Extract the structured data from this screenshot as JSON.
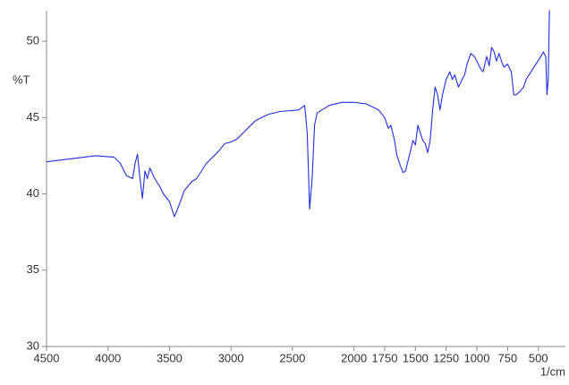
{
  "chart_data": {
    "type": "line",
    "y_label": "%T",
    "x_label": "1/cm",
    "color": "#1f2fe0",
    "x": [
      4500,
      4300,
      4100,
      3950,
      3900,
      3850,
      3800,
      3780,
      3760,
      3740,
      3720,
      3700,
      3680,
      3660,
      3620,
      3580,
      3550,
      3500,
      3460,
      3420,
      3380,
      3320,
      3280,
      3200,
      3100,
      3050,
      3000,
      2950,
      2900,
      2800,
      2700,
      2600,
      2450,
      2400,
      2380,
      2360,
      2340,
      2320,
      2300,
      2200,
      2100,
      2000,
      1900,
      1850,
      1800,
      1750,
      1720,
      1700,
      1670,
      1650,
      1620,
      1600,
      1580,
      1550,
      1520,
      1500,
      1480,
      1460,
      1440,
      1420,
      1400,
      1380,
      1360,
      1340,
      1320,
      1300,
      1280,
      1250,
      1220,
      1200,
      1180,
      1150,
      1120,
      1100,
      1080,
      1050,
      1020,
      1000,
      970,
      950,
      920,
      900,
      880,
      860,
      840,
      820,
      800,
      780,
      750,
      720,
      700,
      680,
      650,
      620,
      600,
      560,
      520,
      480,
      460,
      440,
      430,
      420,
      410,
      405
    ],
    "values": [
      42.1,
      42.3,
      42.5,
      42.4,
      42.0,
      41.2,
      41.0,
      42.0,
      42.6,
      41.0,
      39.7,
      41.5,
      41.0,
      41.7,
      41.0,
      40.5,
      40.0,
      39.5,
      38.5,
      39.3,
      40.2,
      40.8,
      41.0,
      42.0,
      42.8,
      43.3,
      43.4,
      43.6,
      44.0,
      44.8,
      45.2,
      45.4,
      45.5,
      45.8,
      44.0,
      39.0,
      41.0,
      44.5,
      45.3,
      45.8,
      46.0,
      46.0,
      45.9,
      45.7,
      45.5,
      45.0,
      44.3,
      44.5,
      43.5,
      42.5,
      41.8,
      41.4,
      41.5,
      42.5,
      43.5,
      43.2,
      44.5,
      44.0,
      43.5,
      43.3,
      42.7,
      43.5,
      45.5,
      47.0,
      46.5,
      45.5,
      46.5,
      47.5,
      48.0,
      47.5,
      47.8,
      47.0,
      47.5,
      47.8,
      48.5,
      49.2,
      49.0,
      48.7,
      48.2,
      48.0,
      49.0,
      48.4,
      49.6,
      49.3,
      48.7,
      49.2,
      48.7,
      48.3,
      48.5,
      48.0,
      46.5,
      46.5,
      46.7,
      47.0,
      47.5,
      48.0,
      48.5,
      49.0,
      49.3,
      49.0,
      46.5,
      47.5,
      52.0,
      52.0
    ],
    "xlim": [
      4500,
      280
    ],
    "ylim": [
      30,
      52
    ],
    "xticks": [
      4500,
      4000,
      3500,
      3000,
      2500,
      2000,
      1750,
      1500,
      1250,
      1000,
      750,
      500
    ],
    "yticks": [
      30,
      35,
      40,
      45,
      50
    ],
    "grid": false
  }
}
